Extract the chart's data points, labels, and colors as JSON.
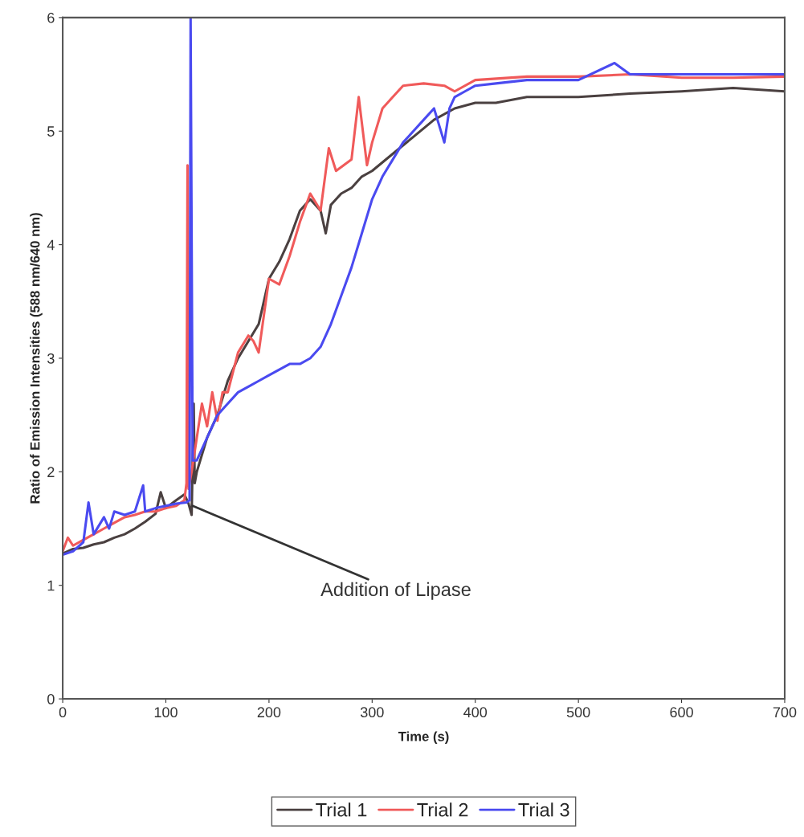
{
  "chart_data": {
    "type": "line",
    "xlabel": "Time (s)",
    "ylabel": "Ratio of Emission Intensities (588 nm/640 nm)",
    "xlim": [
      0,
      700
    ],
    "xticks": [
      0,
      100,
      200,
      300,
      400,
      500,
      600,
      700
    ],
    "ylim": [
      0,
      6
    ],
    "yticks": [
      0,
      1,
      2,
      3,
      4,
      5,
      6
    ],
    "grid": false,
    "legend": "bottom",
    "marker": "none",
    "line_style": "solid",
    "annotations": [
      {
        "text": "Addition of Lipase",
        "x": 126,
        "y": 1.7
      }
    ],
    "series": [
      {
        "name": "Trial 1",
        "color": "#4a4040",
        "x": [
          0,
          10,
          20,
          30,
          40,
          50,
          60,
          70,
          80,
          90,
          95,
          100,
          110,
          118,
          122,
          125,
          127,
          128,
          130,
          140,
          150,
          160,
          170,
          180,
          190,
          200,
          210,
          220,
          230,
          240,
          250,
          255,
          260,
          270,
          280,
          290,
          300,
          320,
          340,
          360,
          380,
          400,
          420,
          450,
          500,
          550,
          600,
          650,
          700
        ],
        "values": [
          1.28,
          1.32,
          1.33,
          1.36,
          1.38,
          1.42,
          1.45,
          1.5,
          1.56,
          1.63,
          1.82,
          1.68,
          1.75,
          1.8,
          1.72,
          1.62,
          2.6,
          1.9,
          2.0,
          2.3,
          2.5,
          2.8,
          3.0,
          3.15,
          3.3,
          3.7,
          3.85,
          4.05,
          4.3,
          4.4,
          4.3,
          4.1,
          4.35,
          4.45,
          4.5,
          4.6,
          4.65,
          4.8,
          4.95,
          5.1,
          5.2,
          5.25,
          5.25,
          5.3,
          5.3,
          5.33,
          5.35,
          5.38,
          5.35
        ]
      },
      {
        "name": "Trial 2",
        "color": "#f05a5a",
        "x": [
          0,
          5,
          10,
          20,
          30,
          40,
          50,
          60,
          70,
          80,
          90,
          100,
          110,
          118,
          120,
          121,
          122,
          125,
          130,
          135,
          140,
          145,
          150,
          155,
          160,
          170,
          180,
          185,
          190,
          200,
          210,
          220,
          230,
          240,
          250,
          258,
          265,
          280,
          287,
          295,
          300,
          310,
          320,
          330,
          350,
          370,
          380,
          400,
          450,
          500,
          550,
          600,
          650,
          700
        ],
        "values": [
          1.3,
          1.42,
          1.35,
          1.4,
          1.45,
          1.5,
          1.55,
          1.6,
          1.62,
          1.65,
          1.65,
          1.68,
          1.7,
          1.75,
          1.9,
          4.7,
          1.85,
          2.0,
          2.3,
          2.6,
          2.4,
          2.7,
          2.45,
          2.7,
          2.7,
          3.05,
          3.2,
          3.15,
          3.05,
          3.7,
          3.65,
          3.9,
          4.2,
          4.45,
          4.3,
          4.85,
          4.65,
          4.75,
          5.3,
          4.7,
          4.9,
          5.2,
          5.3,
          5.4,
          5.42,
          5.4,
          5.35,
          5.45,
          5.48,
          5.48,
          5.5,
          5.47,
          5.47,
          5.48
        ]
      },
      {
        "name": "Trial 3",
        "color": "#4a4af0",
        "x": [
          0,
          10,
          20,
          25,
          30,
          40,
          45,
          50,
          60,
          70,
          78,
          80,
          90,
          100,
          110,
          120,
          123,
          124,
          126,
          130,
          140,
          150,
          160,
          170,
          180,
          190,
          200,
          210,
          220,
          230,
          240,
          250,
          260,
          270,
          280,
          290,
          300,
          310,
          320,
          330,
          340,
          350,
          360,
          365,
          370,
          375,
          380,
          390,
          400,
          420,
          450,
          500,
          535,
          550,
          600,
          650,
          700
        ],
        "values": [
          1.27,
          1.3,
          1.38,
          1.73,
          1.45,
          1.6,
          1.5,
          1.65,
          1.62,
          1.65,
          1.88,
          1.65,
          1.68,
          1.7,
          1.72,
          1.73,
          1.75,
          6.0,
          2.1,
          2.1,
          2.3,
          2.5,
          2.6,
          2.7,
          2.75,
          2.8,
          2.85,
          2.9,
          2.95,
          2.95,
          3.0,
          3.1,
          3.3,
          3.55,
          3.8,
          4.1,
          4.4,
          4.6,
          4.75,
          4.9,
          5.0,
          5.1,
          5.2,
          5.05,
          4.9,
          5.2,
          5.3,
          5.35,
          5.4,
          5.42,
          5.45,
          5.45,
          5.6,
          5.5,
          5.5,
          5.5,
          5.5
        ]
      }
    ]
  }
}
